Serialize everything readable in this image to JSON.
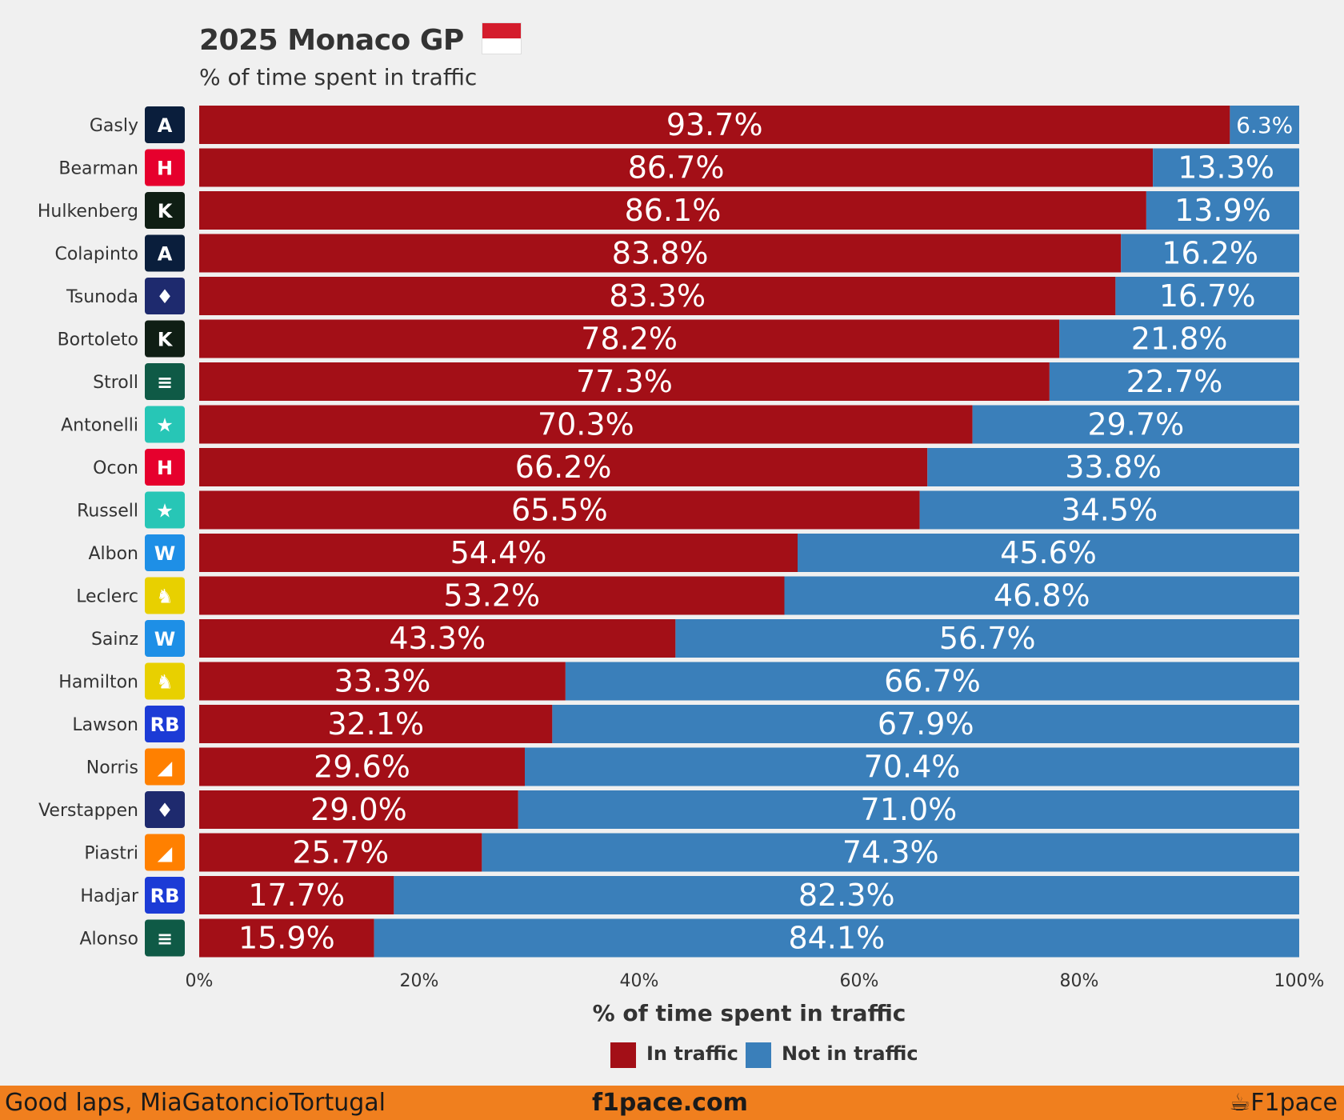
{
  "header": {
    "title": "2025 Monaco GP",
    "subtitle": "% of time spent in traffic"
  },
  "chart_data": {
    "type": "bar",
    "orientation": "horizontal",
    "stacked": true,
    "title": "2025 Monaco GP",
    "subtitle": "% of time spent in traffic",
    "xlabel": "% of time spent in traffic",
    "ylabel": "",
    "xlim": [
      0,
      100
    ],
    "x_ticks": [
      "0%",
      "20%",
      "40%",
      "60%",
      "80%",
      "100%"
    ],
    "categories": [
      "Gasly",
      "Bearman",
      "Hulkenberg",
      "Colapinto",
      "Tsunoda",
      "Bortoleto",
      "Stroll",
      "Antonelli",
      "Ocon",
      "Russell",
      "Albon",
      "Leclerc",
      "Sainz",
      "Hamilton",
      "Lawson",
      "Norris",
      "Verstappen",
      "Piastri",
      "Hadjar",
      "Alonso"
    ],
    "teams": [
      "alpine",
      "haas",
      "sauber",
      "alpine",
      "redbull",
      "sauber",
      "astonmartin",
      "mercedes",
      "haas",
      "mercedes",
      "williams",
      "ferrari",
      "williams",
      "ferrari",
      "racingbulls",
      "mclaren",
      "redbull",
      "mclaren",
      "racingbulls",
      "astonmartin"
    ],
    "series": [
      {
        "name": "In traffic",
        "color": "#a30f17",
        "values": [
          93.7,
          86.7,
          86.1,
          83.8,
          83.3,
          78.2,
          77.3,
          70.3,
          66.2,
          65.5,
          54.4,
          53.2,
          43.3,
          33.3,
          32.1,
          29.6,
          29.0,
          25.7,
          17.7,
          15.9
        ],
        "labels": [
          "93.7%",
          "86.7%",
          "86.1%",
          "83.8%",
          "83.3%",
          "78.2%",
          "77.3%",
          "70.3%",
          "66.2%",
          "65.5%",
          "54.4%",
          "53.2%",
          "43.3%",
          "33.3%",
          "32.1%",
          "29.6%",
          "29.0%",
          "25.7%",
          "17.7%",
          "15.9%"
        ]
      },
      {
        "name": "Not in traffic",
        "color": "#3a7fba",
        "values": [
          6.3,
          13.3,
          13.9,
          16.2,
          16.7,
          21.8,
          22.7,
          29.7,
          33.8,
          34.5,
          45.6,
          46.8,
          56.7,
          66.7,
          67.9,
          70.4,
          71.0,
          74.3,
          82.3,
          84.1
        ],
        "labels": [
          "6.3%",
          "13.3%",
          "13.9%",
          "16.2%",
          "16.7%",
          "21.8%",
          "22.7%",
          "29.7%",
          "33.8%",
          "34.5%",
          "45.6%",
          "46.8%",
          "56.7%",
          "66.7%",
          "67.9%",
          "70.4%",
          "71.0%",
          "74.3%",
          "82.3%",
          "84.1%"
        ]
      }
    ],
    "legend_position": "bottom-center",
    "grid": false
  },
  "team_colors": {
    "alpine": "#0a1e3c",
    "haas": "#e6002d",
    "sauber": "#0f1e14",
    "redbull": "#1e2a6e",
    "astonmartin": "#0f5a46",
    "mercedes": "#27c6b6",
    "williams": "#1e8fe6",
    "ferrari": "#e8d000",
    "racingbulls": "#1c3bd6",
    "mclaren": "#ff8000"
  },
  "team_icon_names": {
    "alpine": "alpine-logo-icon",
    "haas": "haas-logo-icon",
    "sauber": "sauber-logo-icon",
    "redbull": "redbull-logo-icon",
    "astonmartin": "aston-martin-logo-icon",
    "mercedes": "mercedes-logo-icon",
    "williams": "williams-logo-icon",
    "ferrari": "ferrari-logo-icon",
    "racingbulls": "racing-bulls-logo-icon",
    "mclaren": "mclaren-logo-icon"
  },
  "footer": {
    "left": "Good laps, MiaGatoncioTortugal",
    "center": "f1pace.com",
    "right": "F1pace"
  }
}
